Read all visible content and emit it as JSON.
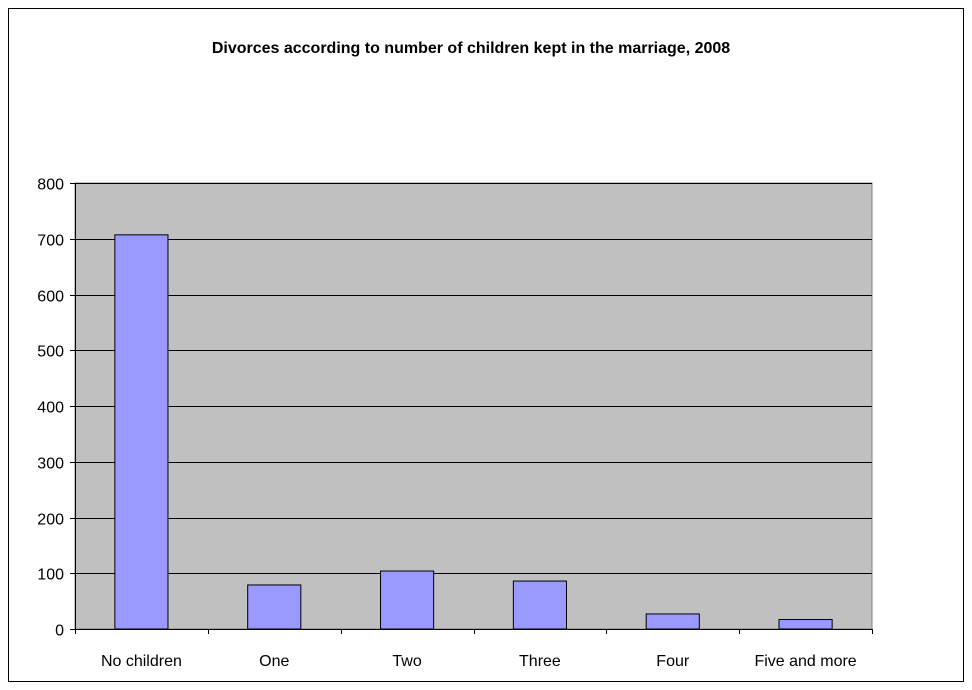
{
  "chart_data": {
    "type": "bar",
    "title": "Divorces according to number of children kept in the marriage, 2008",
    "categories": [
      "No children",
      "One",
      "Two",
      "Three",
      "Four",
      "Five and more"
    ],
    "values": [
      707,
      79,
      104,
      86,
      27,
      17
    ],
    "ylim": [
      0,
      800
    ],
    "yticks": [
      0,
      100,
      200,
      300,
      400,
      500,
      600,
      700,
      800
    ],
    "grid": true,
    "legend": "none",
    "colors": {
      "plot_background": "#c0c0c0",
      "bar_fill": "#9999ff",
      "bar_stroke": "#000000",
      "gridline": "#000000"
    }
  }
}
